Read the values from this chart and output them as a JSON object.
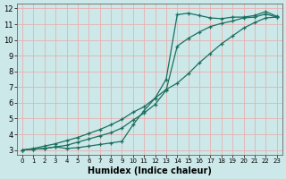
{
  "xlabel": "Humidex (Indice chaleur)",
  "background_color": "#cce8e8",
  "grid_color": "#e8b0b0",
  "line_color": "#1a7060",
  "xlim": [
    -0.5,
    23.5
  ],
  "ylim": [
    2.7,
    12.3
  ],
  "xticks": [
    0,
    1,
    2,
    3,
    4,
    5,
    6,
    7,
    8,
    9,
    10,
    11,
    12,
    13,
    14,
    15,
    16,
    17,
    18,
    19,
    20,
    21,
    22,
    23
  ],
  "yticks": [
    3,
    4,
    5,
    6,
    7,
    8,
    9,
    10,
    11,
    12
  ],
  "line1_x": [
    0,
    1,
    2,
    3,
    4,
    5,
    6,
    7,
    8,
    9,
    10,
    11,
    12,
    13,
    14,
    15,
    16,
    17,
    18,
    19,
    20,
    21,
    22,
    23
  ],
  "line1_y": [
    3.0,
    3.05,
    3.1,
    3.2,
    3.1,
    3.15,
    3.25,
    3.35,
    3.45,
    3.55,
    4.6,
    5.5,
    6.3,
    7.5,
    11.6,
    11.7,
    11.55,
    11.4,
    11.35,
    11.45,
    11.45,
    11.55,
    11.8,
    11.5
  ],
  "line2_x": [
    0,
    1,
    2,
    3,
    4,
    5,
    6,
    7,
    8,
    9,
    10,
    11,
    12,
    13,
    14,
    15,
    16,
    17,
    18,
    19,
    20,
    21,
    22,
    23
  ],
  "line2_y": [
    3.0,
    3.05,
    3.1,
    3.2,
    3.3,
    3.5,
    3.7,
    3.9,
    4.1,
    4.4,
    4.9,
    5.35,
    5.9,
    6.8,
    9.6,
    10.1,
    10.5,
    10.85,
    11.05,
    11.2,
    11.4,
    11.45,
    11.65,
    11.45
  ],
  "line3_x": [
    0,
    1,
    2,
    3,
    4,
    5,
    6,
    7,
    8,
    9,
    10,
    11,
    12,
    13,
    14,
    15,
    16,
    17,
    18,
    19,
    20,
    21,
    22,
    23
  ],
  "line3_y": [
    3.0,
    3.1,
    3.25,
    3.4,
    3.6,
    3.8,
    4.05,
    4.3,
    4.6,
    4.95,
    5.4,
    5.75,
    6.3,
    6.85,
    7.25,
    7.85,
    8.55,
    9.15,
    9.75,
    10.25,
    10.75,
    11.1,
    11.4,
    11.45
  ]
}
